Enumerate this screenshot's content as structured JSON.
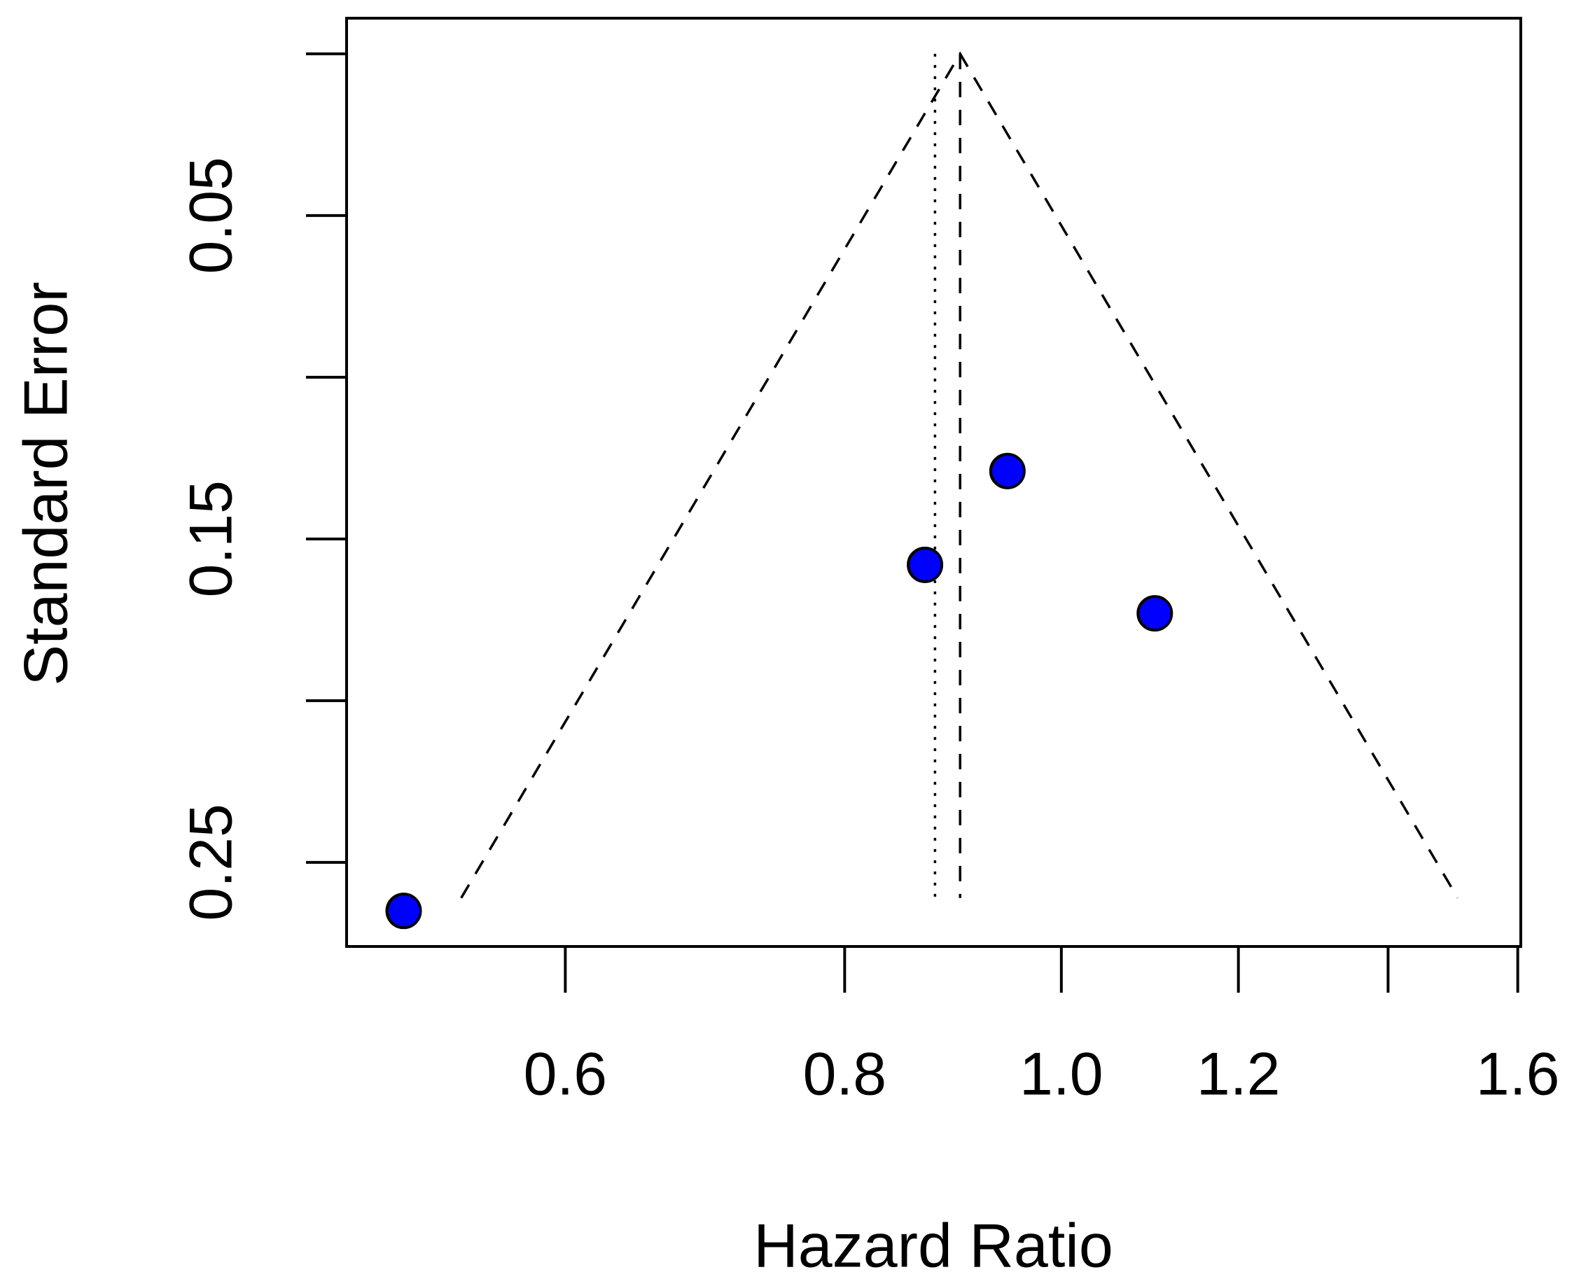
{
  "chart_data": {
    "type": "funnel",
    "x_label": "Hazard Ratio",
    "y_label": "Standard Error",
    "log_x": true,
    "xlim": [
      0.479,
      1.605
    ],
    "xticks": [
      0.6,
      0.8,
      {
        "value": 1,
        "label": "1.0"
      },
      1.2,
      {
        "value": 1.4,
        "label": null
      },
      1.6
    ],
    "ylim": [
      0.276,
      -0.011
    ],
    "yticks": [
      {
        "value": 0,
        "label": null
      },
      0.05,
      {
        "value": 0.1,
        "label": null
      },
      0.15,
      {
        "value": 0.2,
        "label": null
      },
      0.25
    ],
    "series": [
      {
        "color": "#0000ff",
        "x": [
          0.508,
          0.869,
          0.946,
          1.101
        ],
        "values": [
          0.265,
          0.158,
          0.129,
          0.173
        ]
      }
    ],
    "funnel": {
      "x": [
        0.539,
        0.901,
        1.504
      ],
      "y": [
        0.261,
        0,
        0.261
      ]
    },
    "summary_line": {
      "x": [
        0.901,
        0.901
      ],
      "y": [
        0,
        0.261
      ]
    },
    "reference_line": {
      "x": [
        0.878,
        0.878
      ],
      "y": [
        0,
        0.261
      ]
    }
  }
}
